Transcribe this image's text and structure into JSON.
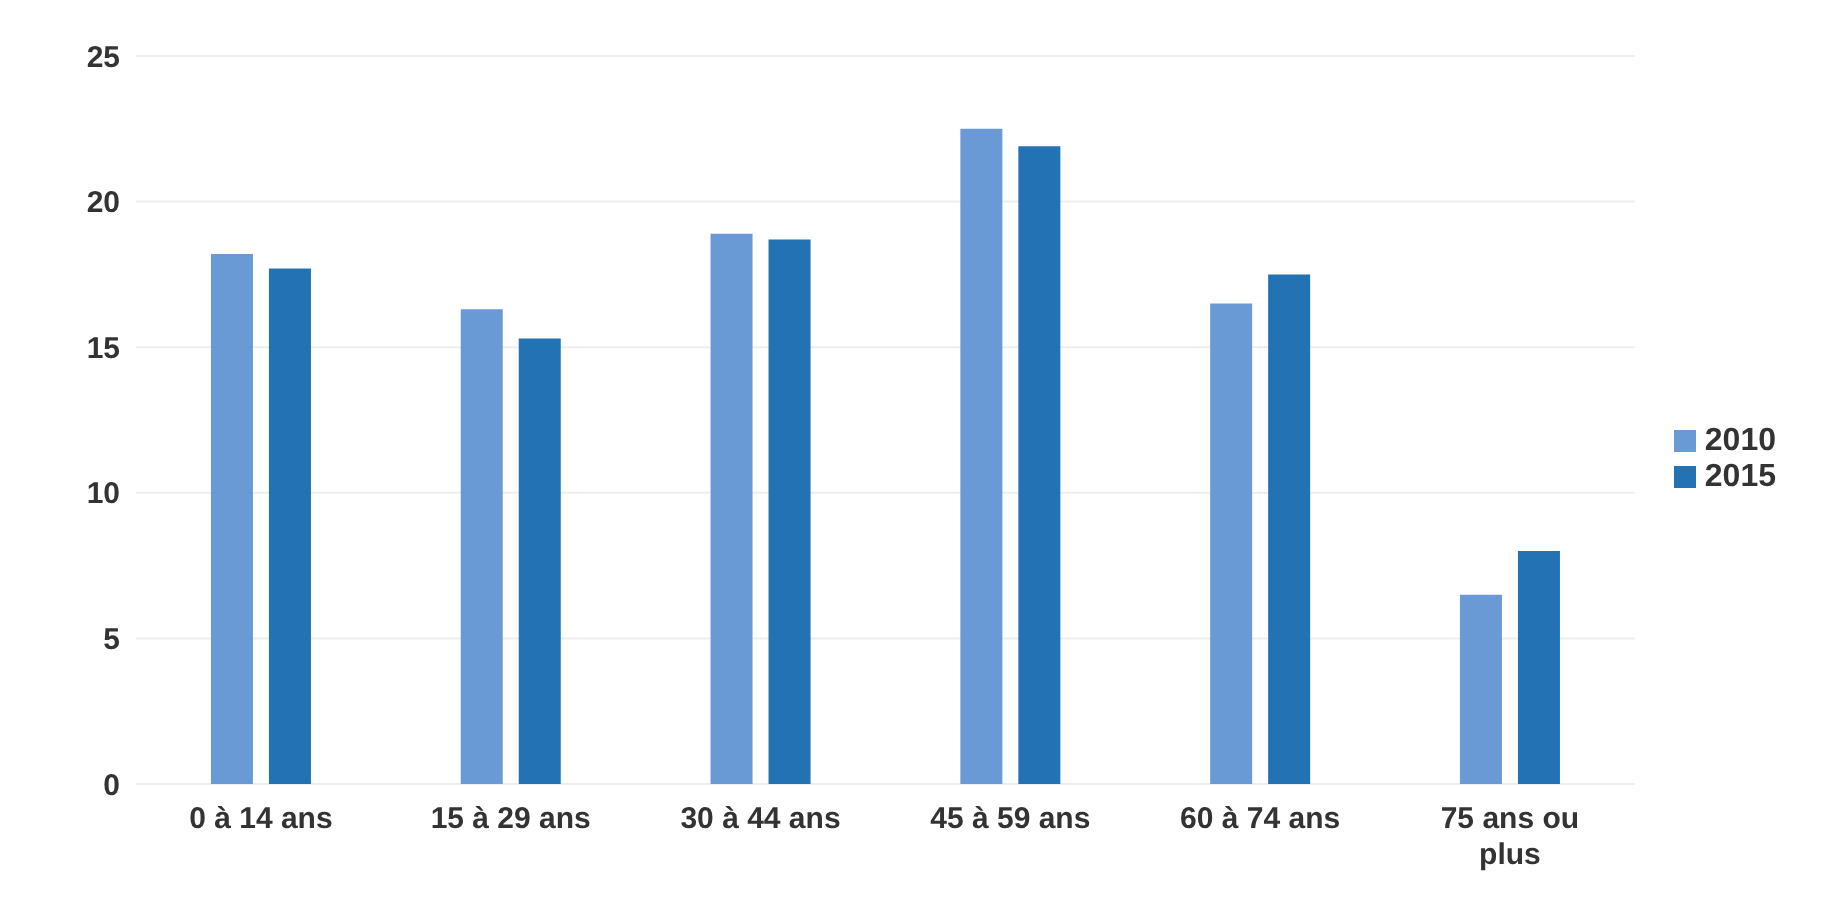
{
  "chart_data": {
    "type": "bar",
    "categories": [
      "0 à 14 ans",
      "15 à 29 ans",
      "30 à 44 ans",
      "45 à 59 ans",
      "60 à 74 ans",
      "75 ans ou plus"
    ],
    "series": [
      {
        "name": "2010",
        "color": "#6a9ad6",
        "values": [
          18.2,
          16.3,
          18.9,
          22.5,
          16.5,
          6.5
        ]
      },
      {
        "name": "2015",
        "color": "#2272b4",
        "values": [
          17.7,
          15.3,
          18.7,
          21.9,
          17.5,
          8.0
        ]
      }
    ],
    "ylim": [
      0,
      25
    ],
    "yticks": [
      0,
      5,
      10,
      15,
      20,
      25
    ],
    "grid": "y",
    "legend": "right"
  }
}
